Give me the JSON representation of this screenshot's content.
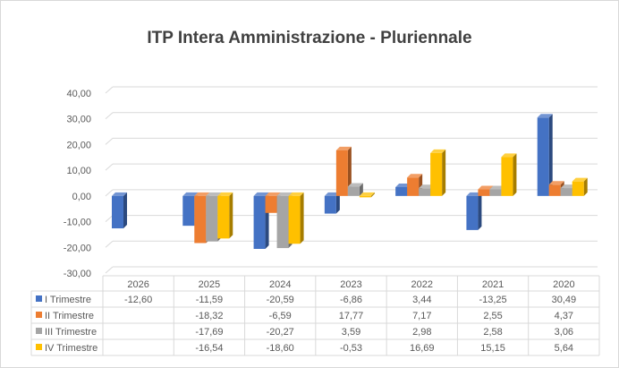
{
  "chart_data": {
    "type": "bar",
    "title": "ITP Intera Amministrazione - Pluriennale",
    "categories": [
      "2026",
      "2025",
      "2024",
      "2023",
      "2022",
      "2021",
      "2020"
    ],
    "series": [
      {
        "name": "I Trimestre",
        "color": "#4472C4",
        "values": [
          -12.6,
          -11.59,
          -20.59,
          -6.86,
          3.44,
          -13.25,
          30.49
        ],
        "labels": [
          "-12,60",
          "-11,59",
          "-20,59",
          "-6,86",
          "3,44",
          "-13,25",
          "30,49"
        ]
      },
      {
        "name": "II Trimestre",
        "color": "#ED7D31",
        "values": [
          null,
          -18.32,
          -6.59,
          17.77,
          7.17,
          2.55,
          4.37
        ],
        "labels": [
          "",
          "-18,32",
          "-6,59",
          "17,77",
          "7,17",
          "2,55",
          "4,37"
        ]
      },
      {
        "name": "III Trimestre",
        "color": "#A5A5A5",
        "values": [
          null,
          -17.69,
          -20.27,
          3.59,
          2.98,
          2.58,
          3.06
        ],
        "labels": [
          "",
          "-17,69",
          "-20,27",
          "3,59",
          "2,98",
          "2,58",
          "3,06"
        ]
      },
      {
        "name": "IV Trimestre",
        "color": "#FFC000",
        "values": [
          null,
          -16.54,
          -18.6,
          -0.53,
          16.69,
          15.15,
          5.64
        ],
        "labels": [
          "",
          "-16,54",
          "-18,60",
          "-0,53",
          "16,69",
          "15,15",
          "5,64"
        ]
      }
    ],
    "ylim": [
      -30,
      40
    ],
    "yticks": [
      "40,00",
      "30,00",
      "20,00",
      "10,00",
      "0,00",
      "-10,00",
      "-20,00",
      "-30,00"
    ],
    "grid": true,
    "data_table": true,
    "three_d": true
  }
}
